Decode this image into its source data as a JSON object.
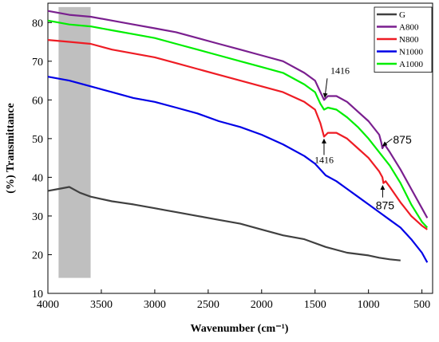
{
  "chart_data": {
    "type": "line",
    "xlabel": "Wavenumber (cm⁻¹)",
    "ylabel": "(%) Transmittance",
    "xlim": [
      4000,
      400
    ],
    "ylim": [
      10,
      85
    ],
    "x_reversed": true,
    "x_ticks": [
      4000,
      3500,
      3000,
      2500,
      2000,
      1500,
      1000,
      500
    ],
    "y_ticks": [
      10,
      20,
      30,
      40,
      50,
      60,
      70,
      80
    ],
    "grid": false,
    "legend_position": "top-right",
    "highlight_band": {
      "x": [
        3900,
        3600
      ],
      "y": [
        14,
        84
      ],
      "color": "#bfbfbf"
    },
    "series": [
      {
        "name": "G",
        "color": "#404040",
        "points": [
          [
            4000,
            36.5
          ],
          [
            3900,
            37
          ],
          [
            3800,
            37.5
          ],
          [
            3700,
            36
          ],
          [
            3600,
            35
          ],
          [
            3400,
            33.8
          ],
          [
            3200,
            33
          ],
          [
            3000,
            32
          ],
          [
            2900,
            31.5
          ],
          [
            2800,
            31
          ],
          [
            2600,
            30
          ],
          [
            2400,
            29
          ],
          [
            2200,
            28
          ],
          [
            2000,
            26.5
          ],
          [
            1800,
            25
          ],
          [
            1600,
            24
          ],
          [
            1400,
            22
          ],
          [
            1200,
            20.5
          ],
          [
            1000,
            19.8
          ],
          [
            900,
            19.2
          ],
          [
            800,
            18.8
          ],
          [
            700,
            18.5
          ]
        ]
      },
      {
        "name": "A800",
        "color": "#7a1f8f",
        "points": [
          [
            4000,
            83
          ],
          [
            3800,
            82
          ],
          [
            3600,
            81.5
          ],
          [
            3400,
            80.5
          ],
          [
            3200,
            79.5
          ],
          [
            3000,
            78.5
          ],
          [
            2800,
            77.5
          ],
          [
            2600,
            76
          ],
          [
            2400,
            74.5
          ],
          [
            2200,
            73
          ],
          [
            2000,
            71.5
          ],
          [
            1800,
            70
          ],
          [
            1600,
            67
          ],
          [
            1500,
            65
          ],
          [
            1450,
            62
          ],
          [
            1416,
            60
          ],
          [
            1380,
            61
          ],
          [
            1300,
            61
          ],
          [
            1200,
            59.5
          ],
          [
            1100,
            57
          ],
          [
            1000,
            54.5
          ],
          [
            900,
            51
          ],
          [
            880,
            49
          ],
          [
            870,
            47.5
          ],
          [
            850,
            48.5
          ],
          [
            800,
            46.5
          ],
          [
            700,
            42
          ],
          [
            600,
            37
          ],
          [
            500,
            32
          ],
          [
            450,
            29.5
          ]
        ]
      },
      {
        "name": "N800",
        "color": "#ee1c24",
        "points": [
          [
            4000,
            75.5
          ],
          [
            3800,
            75
          ],
          [
            3600,
            74.5
          ],
          [
            3400,
            73
          ],
          [
            3200,
            72
          ],
          [
            3000,
            71
          ],
          [
            2800,
            69.5
          ],
          [
            2600,
            68
          ],
          [
            2400,
            66.5
          ],
          [
            2200,
            65
          ],
          [
            2000,
            63.5
          ],
          [
            1800,
            62
          ],
          [
            1600,
            59.5
          ],
          [
            1500,
            57.5
          ],
          [
            1450,
            54
          ],
          [
            1416,
            50.5
          ],
          [
            1380,
            51.5
          ],
          [
            1300,
            51.5
          ],
          [
            1200,
            50
          ],
          [
            1100,
            47.5
          ],
          [
            1000,
            45
          ],
          [
            900,
            41.5
          ],
          [
            870,
            40
          ],
          [
            860,
            38.5
          ],
          [
            840,
            39
          ],
          [
            800,
            37.5
          ],
          [
            700,
            33.5
          ],
          [
            600,
            30
          ],
          [
            500,
            27.5
          ],
          [
            450,
            26.5
          ]
        ]
      },
      {
        "name": "N1000",
        "color": "#0000e6",
        "points": [
          [
            4000,
            66
          ],
          [
            3800,
            65
          ],
          [
            3600,
            63.5
          ],
          [
            3400,
            62
          ],
          [
            3200,
            60.5
          ],
          [
            3000,
            59.5
          ],
          [
            2800,
            58
          ],
          [
            2600,
            56.5
          ],
          [
            2400,
            54.5
          ],
          [
            2200,
            53
          ],
          [
            2000,
            51
          ],
          [
            1800,
            48.5
          ],
          [
            1600,
            45.5
          ],
          [
            1500,
            43.5
          ],
          [
            1400,
            40.5
          ],
          [
            1300,
            39
          ],
          [
            1200,
            37
          ],
          [
            1100,
            35
          ],
          [
            1000,
            33
          ],
          [
            900,
            31
          ],
          [
            800,
            29
          ],
          [
            700,
            27
          ],
          [
            600,
            24
          ],
          [
            500,
            20.5
          ],
          [
            450,
            18
          ]
        ]
      },
      {
        "name": "A1000",
        "color": "#00ee00",
        "points": [
          [
            4000,
            80.5
          ],
          [
            3800,
            79.5
          ],
          [
            3600,
            79
          ],
          [
            3400,
            78
          ],
          [
            3200,
            77
          ],
          [
            3000,
            76
          ],
          [
            2800,
            74.5
          ],
          [
            2600,
            73
          ],
          [
            2400,
            71.5
          ],
          [
            2200,
            70
          ],
          [
            2000,
            68.5
          ],
          [
            1800,
            67
          ],
          [
            1600,
            64
          ],
          [
            1500,
            62
          ],
          [
            1450,
            59
          ],
          [
            1416,
            57.5
          ],
          [
            1380,
            58
          ],
          [
            1300,
            57.5
          ],
          [
            1200,
            55.5
          ],
          [
            1100,
            53
          ],
          [
            1000,
            50
          ],
          [
            900,
            46.5
          ],
          [
            800,
            43
          ],
          [
            700,
            38.5
          ],
          [
            600,
            33
          ],
          [
            500,
            28.5
          ],
          [
            450,
            27
          ]
        ]
      }
    ],
    "annotations": [
      {
        "text": "1416",
        "series": "A800",
        "at": [
          1416,
          60
        ],
        "style": "serif"
      },
      {
        "text": "1416",
        "series": "N800",
        "at": [
          1416,
          50.5
        ],
        "style": "serif"
      },
      {
        "text": "875",
        "series": "A800",
        "at": [
          875,
          47.5
        ],
        "style": "sans"
      },
      {
        "text": "875",
        "series": "N800",
        "at": [
          875,
          38.5
        ],
        "style": "sans"
      }
    ]
  }
}
